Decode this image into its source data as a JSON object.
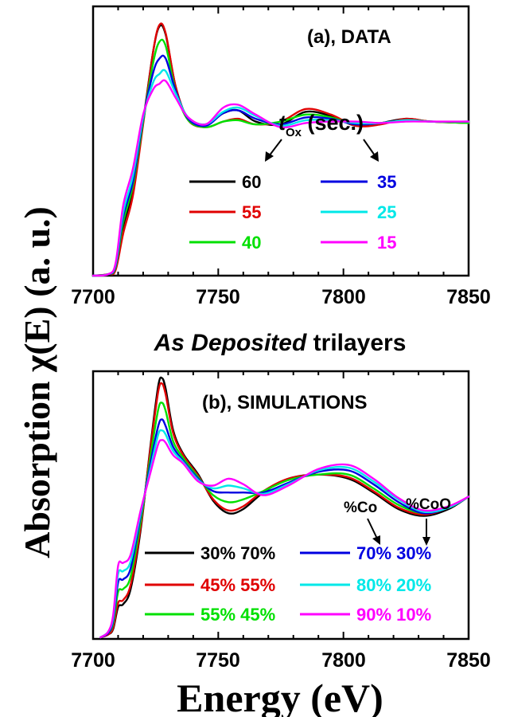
{
  "figure": {
    "ylabel": "Absorption χ(E) (a. u.)",
    "xlabel": "Energy (eV)",
    "middle_label_italic": "As Deposited",
    "middle_label_rest": " trilayers"
  },
  "chart_data": [
    {
      "type": "line",
      "panel": "top",
      "title": "(a), DATA",
      "xlabel": "",
      "ylabel": "Absorption χ(E) (a. u.)",
      "xlim": [
        7700,
        7850
      ],
      "ylim": [
        0,
        1.9
      ],
      "xticks": [
        "7700",
        "7750",
        "7800",
        "7850"
      ],
      "grid": false,
      "legend_header": {
        "t": "t",
        "sub": "Ox",
        "rest": " (sec.)"
      },
      "legend_placement": "center-right",
      "series": [
        {
          "name": "60",
          "color": "#000000",
          "x": [
            7700,
            7706,
            7709,
            7712,
            7716,
            7720,
            7724,
            7726.5,
            7729,
            7733,
            7738,
            7745,
            7752,
            7758,
            7765,
            7775,
            7785,
            7795,
            7805,
            7815,
            7825,
            7835,
            7850
          ],
          "y": [
            0.0,
            0.01,
            0.05,
            0.35,
            0.62,
            1.1,
            1.6,
            1.78,
            1.72,
            1.35,
            1.12,
            1.08,
            1.16,
            1.18,
            1.1,
            1.08,
            1.17,
            1.14,
            1.07,
            1.09,
            1.12,
            1.1,
            1.09
          ]
        },
        {
          "name": "55",
          "color": "#e00000",
          "x": [
            7700,
            7706,
            7709,
            7712,
            7716,
            7720,
            7724,
            7726.5,
            7729,
            7733,
            7738,
            7745,
            7752,
            7758,
            7765,
            7775,
            7785,
            7795,
            7805,
            7815,
            7825,
            7835,
            7850
          ],
          "y": [
            0.0,
            0.01,
            0.04,
            0.3,
            0.58,
            1.08,
            1.6,
            1.79,
            1.73,
            1.35,
            1.11,
            1.06,
            1.1,
            1.12,
            1.08,
            1.1,
            1.19,
            1.15,
            1.07,
            1.08,
            1.12,
            1.1,
            1.09
          ]
        },
        {
          "name": "40",
          "color": "#00e000",
          "x": [
            7700,
            7706,
            7709,
            7712,
            7716,
            7720,
            7724,
            7726.5,
            7729,
            7733,
            7738,
            7745,
            7752,
            7758,
            7765,
            7775,
            7785,
            7795,
            7805,
            7815,
            7825,
            7835,
            7850
          ],
          "y": [
            0.0,
            0.01,
            0.06,
            0.38,
            0.65,
            1.1,
            1.52,
            1.67,
            1.64,
            1.32,
            1.11,
            1.06,
            1.1,
            1.11,
            1.08,
            1.1,
            1.15,
            1.13,
            1.08,
            1.09,
            1.11,
            1.1,
            1.09
          ]
        },
        {
          "name": "35",
          "color": "#0000e0",
          "x": [
            7700,
            7706,
            7709,
            7712,
            7716,
            7720,
            7724,
            7726.5,
            7729,
            7733,
            7738,
            7745,
            7752,
            7758,
            7765,
            7775,
            7785,
            7795,
            7805,
            7815,
            7825,
            7835,
            7850
          ],
          "y": [
            0.0,
            0.01,
            0.07,
            0.42,
            0.68,
            1.12,
            1.45,
            1.55,
            1.55,
            1.32,
            1.12,
            1.07,
            1.16,
            1.18,
            1.12,
            1.08,
            1.13,
            1.12,
            1.08,
            1.09,
            1.11,
            1.1,
            1.1
          ]
        },
        {
          "name": "25",
          "color": "#00e8e8",
          "x": [
            7700,
            7706,
            7709,
            7712,
            7716,
            7720,
            7724,
            7726.5,
            7729,
            7733,
            7738,
            7745,
            7752,
            7758,
            7765,
            7775,
            7785,
            7795,
            7805,
            7815,
            7825,
            7835,
            7850
          ],
          "y": [
            0.0,
            0.01,
            0.08,
            0.45,
            0.72,
            1.13,
            1.38,
            1.44,
            1.46,
            1.3,
            1.13,
            1.08,
            1.17,
            1.2,
            1.14,
            1.07,
            1.11,
            1.11,
            1.09,
            1.09,
            1.11,
            1.1,
            1.1
          ]
        },
        {
          "name": "15",
          "color": "#ff00ff",
          "x": [
            7700,
            7706,
            7709,
            7712,
            7716,
            7720,
            7724,
            7726.5,
            7729,
            7733,
            7738,
            7745,
            7752,
            7758,
            7765,
            7775,
            7785,
            7795,
            7805,
            7815,
            7825,
            7835,
            7850
          ],
          "y": [
            0.0,
            0.01,
            0.09,
            0.5,
            0.77,
            1.15,
            1.33,
            1.37,
            1.39,
            1.27,
            1.13,
            1.08,
            1.2,
            1.22,
            1.15,
            1.06,
            1.09,
            1.1,
            1.1,
            1.09,
            1.1,
            1.1,
            1.1
          ]
        }
      ]
    },
    {
      "type": "line",
      "panel": "bottom",
      "title": "(b), SIMULATIONS",
      "xlabel": "Energy (eV)",
      "ylabel": "Absorption χ(E) (a. u.)",
      "xlim": [
        7700,
        7850
      ],
      "ylim": [
        0,
        1.9
      ],
      "xticks": [
        "7700",
        "7750",
        "7800",
        "7850"
      ],
      "grid": false,
      "legend_header": {
        "left": "%Co",
        "right": "%CoO"
      },
      "legend_placement": "bottom-center",
      "series": [
        {
          "name": "30% 70%",
          "color": "#000000",
          "x": [
            7703,
            7706,
            7708,
            7710,
            7712,
            7715,
            7719,
            7723,
            7726,
            7727.5,
            7729,
            7732,
            7736,
            7742,
            7748,
            7754,
            7760,
            7768,
            7778,
            7790,
            7802,
            7812,
            7822,
            7832,
            7842,
            7850
          ],
          "y": [
            0.0,
            0.02,
            0.06,
            0.22,
            0.24,
            0.35,
            0.78,
            1.4,
            1.82,
            1.88,
            1.8,
            1.5,
            1.33,
            1.18,
            0.99,
            0.9,
            0.93,
            1.05,
            1.15,
            1.18,
            1.15,
            1.05,
            0.93,
            0.88,
            0.93,
            1.02
          ]
        },
        {
          "name": "45% 55%",
          "color": "#e00000",
          "x": [
            7703,
            7706,
            7708,
            7710,
            7712,
            7715,
            7719,
            7723,
            7726,
            7727.5,
            7729,
            7732,
            7736,
            7742,
            7748,
            7754,
            7760,
            7768,
            7778,
            7790,
            7802,
            7812,
            7822,
            7832,
            7842,
            7850
          ],
          "y": [
            0.0,
            0.02,
            0.07,
            0.25,
            0.27,
            0.38,
            0.8,
            1.38,
            1.78,
            1.84,
            1.76,
            1.48,
            1.32,
            1.17,
            1.0,
            0.92,
            0.95,
            1.06,
            1.15,
            1.18,
            1.16,
            1.06,
            0.94,
            0.89,
            0.94,
            1.02
          ]
        },
        {
          "name": "55% 45%",
          "color": "#00e000",
          "x": [
            7703,
            7706,
            7708,
            7710,
            7712,
            7715,
            7719,
            7723,
            7726,
            7727.5,
            7729,
            7732,
            7736,
            7742,
            7748,
            7754,
            7760,
            7768,
            7778,
            7790,
            7802,
            7812,
            7822,
            7832,
            7842,
            7850
          ],
          "y": [
            0.0,
            0.03,
            0.1,
            0.33,
            0.35,
            0.44,
            0.84,
            1.32,
            1.65,
            1.7,
            1.64,
            1.42,
            1.3,
            1.16,
            1.03,
            0.98,
            1.0,
            1.06,
            1.14,
            1.18,
            1.18,
            1.08,
            0.96,
            0.9,
            0.94,
            1.02
          ]
        },
        {
          "name": "70% 30%",
          "color": "#0000e0",
          "x": [
            7703,
            7706,
            7708,
            7710,
            7712,
            7715,
            7719,
            7723,
            7726,
            7727.5,
            7729,
            7732,
            7736,
            7742,
            7748,
            7754,
            7760,
            7768,
            7778,
            7790,
            7802,
            7812,
            7822,
            7832,
            7842,
            7850
          ],
          "y": [
            0.0,
            0.03,
            0.12,
            0.4,
            0.42,
            0.5,
            0.88,
            1.27,
            1.53,
            1.58,
            1.53,
            1.38,
            1.28,
            1.15,
            1.06,
            1.05,
            1.05,
            1.05,
            1.12,
            1.2,
            1.21,
            1.11,
            0.98,
            0.9,
            0.94,
            1.02
          ]
        },
        {
          "name": "80% 20%",
          "color": "#00e8e8",
          "x": [
            7703,
            7706,
            7708,
            7710,
            7712,
            7715,
            7719,
            7723,
            7726,
            7727.5,
            7729,
            7732,
            7736,
            7742,
            7748,
            7754,
            7760,
            7768,
            7778,
            7790,
            7802,
            7812,
            7822,
            7832,
            7842,
            7850
          ],
          "y": [
            0.0,
            0.04,
            0.14,
            0.46,
            0.48,
            0.55,
            0.9,
            1.23,
            1.47,
            1.5,
            1.47,
            1.35,
            1.27,
            1.14,
            1.08,
            1.1,
            1.08,
            1.04,
            1.11,
            1.21,
            1.23,
            1.13,
            1.0,
            0.91,
            0.94,
            1.02
          ]
        },
        {
          "name": "90% 10%",
          "color": "#ff00ff",
          "x": [
            7703,
            7706,
            7708,
            7710,
            7712,
            7715,
            7719,
            7723,
            7726,
            7727.5,
            7729,
            7732,
            7736,
            7742,
            7748,
            7754,
            7760,
            7768,
            7778,
            7790,
            7802,
            7812,
            7822,
            7832,
            7842,
            7850
          ],
          "y": [
            0.0,
            0.04,
            0.16,
            0.52,
            0.54,
            0.6,
            0.92,
            1.2,
            1.4,
            1.43,
            1.41,
            1.32,
            1.26,
            1.13,
            1.1,
            1.15,
            1.11,
            1.03,
            1.1,
            1.22,
            1.25,
            1.15,
            1.01,
            0.92,
            0.95,
            1.02
          ]
        }
      ]
    }
  ]
}
